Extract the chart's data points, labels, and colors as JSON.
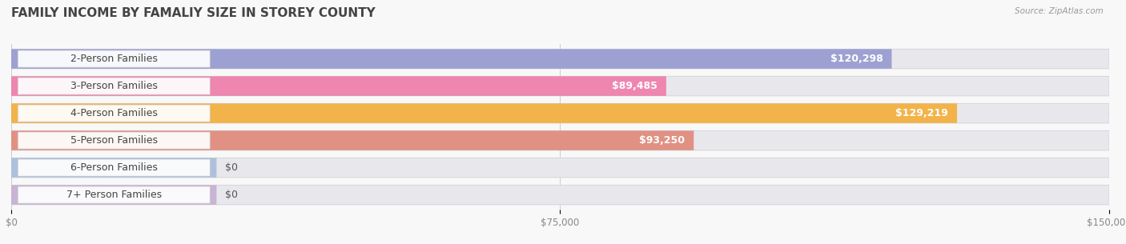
{
  "title": "FAMILY INCOME BY FAMALIY SIZE IN STOREY COUNTY",
  "source": "Source: ZipAtlas.com",
  "categories": [
    "2-Person Families",
    "3-Person Families",
    "4-Person Families",
    "5-Person Families",
    "6-Person Families",
    "7+ Person Families"
  ],
  "values": [
    120298,
    89485,
    129219,
    93250,
    0,
    0
  ],
  "bar_colors": [
    "#8b8fcc",
    "#f06ea0",
    "#f5a623",
    "#e07b6a",
    "#a0b8d8",
    "#c0a8d0"
  ],
  "x_max": 150000,
  "x_ticks": [
    0,
    75000,
    150000
  ],
  "x_tick_labels": [
    "$0",
    "$75,000",
    "$150,000"
  ],
  "label_fontsize": 9,
  "value_fontsize": 9,
  "title_fontsize": 11,
  "background_color": "#f8f8f8",
  "bar_bg_color": "#e8e8ec"
}
